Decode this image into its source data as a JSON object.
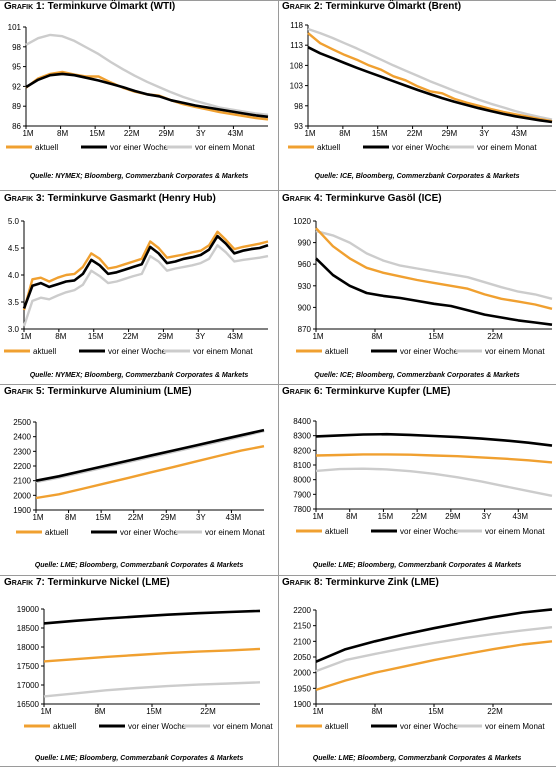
{
  "panels": [
    {
      "grafik": "Grafik 1:",
      "name": "Terminkurve Ölmarkt (WTI)",
      "source": "Quelle: NYMEX; Bloomberg, Commerzbank Corporates & Markets",
      "chart_data": {
        "type": "line",
        "xlabel": "",
        "ylabel": "",
        "x_ticks": [
          "1M",
          "8M",
          "15M",
          "22M",
          "29M",
          "3Y",
          "43M"
        ],
        "ylim": [
          86,
          101
        ],
        "y_ticks": [
          "86",
          "89",
          "92",
          "95",
          "98",
          "101"
        ],
        "series": [
          {
            "name": "aktuell",
            "color": "#f0a030",
            "values": [
              91.8,
              93.2,
              93.9,
              94.2,
              93.8,
              93.5,
              93.5,
              92.6,
              91.8,
              91.2,
              90.8,
              90.6,
              89.9,
              89.3,
              88.9,
              88.5,
              88.1,
              87.8,
              87.5,
              87.2,
              87.0
            ]
          },
          {
            "name": "vor einer Woche",
            "color": "#000000",
            "values": [
              91.9,
              93.0,
              93.7,
              93.9,
              93.7,
              93.3,
              92.9,
              92.4,
              91.9,
              91.3,
              90.8,
              90.5,
              89.9,
              89.5,
              89.1,
              88.8,
              88.5,
              88.2,
              87.9,
              87.6,
              87.4
            ]
          },
          {
            "name": "vor einem Monat",
            "color": "#cccccc",
            "values": [
              98.3,
              99.3,
              99.8,
              99.6,
              98.9,
              97.9,
              96.9,
              95.7,
              94.6,
              93.6,
              92.7,
              91.9,
              91.1,
              90.4,
              89.8,
              89.3,
              88.8,
              88.5,
              88.2,
              87.9,
              87.7
            ]
          }
        ]
      }
    },
    {
      "grafik": "Grafik 2:",
      "name": "Terminkurve Ölmarkt (Brent)",
      "source": "Quelle: ICE, Bloomberg, Commerzbank Corporates & Markets",
      "chart_data": {
        "type": "line",
        "xlabel": "",
        "ylabel": "",
        "x_ticks": [
          "1M",
          "8M",
          "15M",
          "22M",
          "29M",
          "3Y",
          "43M"
        ],
        "ylim": [
          93,
          118
        ],
        "y_ticks": [
          "93",
          "98",
          "103",
          "108",
          "113",
          "118"
        ],
        "series": [
          {
            "name": "aktuell",
            "color": "#f0a030",
            "values": [
              116.0,
              113.5,
              112.0,
              110.6,
              109.4,
              108.0,
              106.9,
              105.3,
              104.3,
              102.8,
              101.6,
              101.1,
              99.7,
              98.8,
              98.0,
              97.2,
              96.5,
              95.9,
              95.3,
              94.7,
              94.2
            ]
          },
          {
            "name": "vor einer Woche",
            "color": "#000000",
            "values": [
              112.5,
              111.0,
              109.8,
              108.6,
              107.4,
              106.3,
              105.2,
              104.1,
              103.0,
              101.9,
              100.9,
              99.9,
              99.0,
              98.2,
              97.4,
              96.7,
              96.0,
              95.4,
              94.9,
              94.4,
              94.0
            ]
          },
          {
            "name": "vor einem Monat",
            "color": "#cccccc",
            "values": [
              117.0,
              116.0,
              114.8,
              113.5,
              112.2,
              110.8,
              109.4,
              108.0,
              106.7,
              105.4,
              104.1,
              102.9,
              101.7,
              100.6,
              99.5,
              98.5,
              97.6,
              96.7,
              95.9,
              95.2,
              94.6
            ]
          }
        ]
      }
    },
    {
      "grafik": "Grafik 3:",
      "name": "Terminkurve Gasmarkt (Henry Hub)",
      "source": "Quelle: NYMEX; Bloomberg, Commerzbank Corporates & Markets",
      "chart_data": {
        "type": "line",
        "xlabel": "",
        "ylabel": "",
        "x_ticks": [
          "1M",
          "8M",
          "15M",
          "22M",
          "29M",
          "3Y",
          "43M"
        ],
        "ylim": [
          3.0,
          5.0
        ],
        "y_ticks": [
          "3.0",
          "3.5",
          "4.0",
          "4.5",
          "5.0"
        ],
        "series": [
          {
            "name": "aktuell",
            "color": "#f0a030",
            "values": [
              3.35,
              3.92,
              3.95,
              3.88,
              3.95,
              4.0,
              4.02,
              4.15,
              4.4,
              4.3,
              4.12,
              4.15,
              4.2,
              4.25,
              4.3,
              4.62,
              4.5,
              4.32,
              4.35,
              4.38,
              4.42,
              4.45,
              4.55,
              4.8,
              4.65,
              4.48,
              4.52,
              4.55,
              4.58,
              4.62
            ]
          },
          {
            "name": "vor einer Woche",
            "color": "#000000",
            "values": [
              3.38,
              3.8,
              3.85,
              3.78,
              3.83,
              3.88,
              3.9,
              4.02,
              4.28,
              4.18,
              4.02,
              4.05,
              4.1,
              4.15,
              4.2,
              4.52,
              4.4,
              4.22,
              4.25,
              4.3,
              4.33,
              4.37,
              4.47,
              4.72,
              4.58,
              4.4,
              4.45,
              4.48,
              4.5,
              4.55
            ]
          },
          {
            "name": "vor einem Monat",
            "color": "#cccccc",
            "values": [
              3.05,
              3.52,
              3.58,
              3.55,
              3.62,
              3.68,
              3.72,
              3.82,
              4.08,
              3.98,
              3.85,
              3.88,
              3.93,
              3.98,
              4.02,
              4.35,
              4.25,
              4.08,
              4.12,
              4.15,
              4.18,
              4.22,
              4.3,
              4.55,
              4.42,
              4.25,
              4.28,
              4.3,
              4.32,
              4.35
            ]
          }
        ]
      }
    },
    {
      "grafik": "Grafik 4:",
      "name": "Terminkurve Gasöl (ICE)",
      "source": "Quelle: ICE; Bloomberg, Commerzbank Corporates & Markets",
      "chart_data": {
        "type": "line",
        "xlabel": "",
        "ylabel": "",
        "x_ticks": [
          "1M",
          "8M",
          "15M",
          "22M"
        ],
        "ylim": [
          870,
          1020
        ],
        "y_ticks": [
          "870",
          "900",
          "930",
          "960",
          "990",
          "1020"
        ],
        "series": [
          {
            "name": "aktuell",
            "color": "#f0a030",
            "values": [
              1010,
              985,
              968,
              955,
              948,
              943,
              938,
              934,
              930,
              926,
              918,
              912,
              908,
              904,
              898
            ]
          },
          {
            "name": "vor einer Woche",
            "color": "#000000",
            "values": [
              968,
              945,
              930,
              920,
              916,
              913,
              909,
              905,
              902,
              896,
              890,
              886,
              882,
              879,
              876
            ]
          },
          {
            "name": "vor einem Monat",
            "color": "#cccccc",
            "values": [
              1006,
              1000,
              990,
              975,
              965,
              958,
              954,
              950,
              946,
              942,
              935,
              928,
              922,
              918,
              912
            ]
          }
        ]
      }
    },
    {
      "grafik": "Grafik 5:",
      "name": "Terminkurve Aluminium (LME)",
      "source": "Quelle: LME; Bloomberg, Commerzbank Corporates & Markets",
      "chart_data": {
        "type": "line",
        "xlabel": "",
        "ylabel": "",
        "x_ticks": [
          "1M",
          "8M",
          "15M",
          "22M",
          "29M",
          "3Y",
          "43M"
        ],
        "ylim": [
          1900,
          2500
        ],
        "y_ticks": [
          "1900",
          "2000",
          "2100",
          "2200",
          "2300",
          "2400",
          "2500"
        ],
        "series": [
          {
            "name": "aktuell",
            "color": "#f0a030",
            "values": [
              1982,
              2007,
              2043,
              2080,
              2117,
              2155,
              2192,
              2230,
              2268,
              2305,
              2335
            ]
          },
          {
            "name": "vor einer Woche",
            "color": "#000000",
            "values": [
              2100,
              2130,
              2165,
              2200,
              2235,
              2270,
              2305,
              2340,
              2375,
              2410,
              2445
            ]
          },
          {
            "name": "vor einem Monat",
            "color": "#cccccc",
            "values": [
              2090,
              2120,
              2155,
              2190,
              2225,
              2260,
              2295,
              2330,
              2365,
              2400,
              2438
            ]
          }
        ]
      }
    },
    {
      "grafik": "Grafik 6:",
      "name": "Terminkurve Kupfer (LME)",
      "source": "Quelle: LME; Bloomberg, Commerzbank Corporates & Markets",
      "chart_data": {
        "type": "line",
        "xlabel": "",
        "ylabel": "",
        "x_ticks": [
          "1M",
          "8M",
          "15M",
          "22M",
          "29M",
          "3Y",
          "43M"
        ],
        "ylim": [
          7800,
          8400
        ],
        "y_ticks": [
          "7800",
          "7900",
          "8000",
          "8100",
          "8200",
          "8300",
          "8400"
        ],
        "series": [
          {
            "name": "aktuell",
            "color": "#f0a030",
            "values": [
              8165,
              8168,
              8172,
              8172,
              8170,
              8165,
              8160,
              8152,
              8143,
              8132,
              8118
            ]
          },
          {
            "name": "vor einer Woche",
            "color": "#000000",
            "values": [
              8295,
              8302,
              8308,
              8310,
              8305,
              8298,
              8290,
              8280,
              8268,
              8252,
              8232
            ]
          },
          {
            "name": "vor einem Monat",
            "color": "#cccccc",
            "values": [
              8060,
              8072,
              8075,
              8070,
              8058,
              8040,
              8016,
              7988,
              7955,
              7922,
              7890
            ]
          }
        ]
      }
    },
    {
      "grafik": "Grafik 7:",
      "name": "Terminkurve Nickel (LME)",
      "source": "Quelle: LME; Bloomberg, Commerzbank Corporates & Markets",
      "chart_data": {
        "type": "line",
        "xlabel": "",
        "ylabel": "",
        "x_ticks": [
          "1M",
          "8M",
          "15M",
          "22M"
        ],
        "ylim": [
          16500,
          19000
        ],
        "y_ticks": [
          "16500",
          "17000",
          "17500",
          "18000",
          "18500",
          "19000"
        ],
        "series": [
          {
            "name": "aktuell",
            "color": "#f0a030",
            "values": [
              17620,
              17680,
              17740,
              17790,
              17840,
              17880,
              17910,
              17950
            ]
          },
          {
            "name": "vor einer Woche",
            "color": "#000000",
            "values": [
              18620,
              18690,
              18750,
              18800,
              18850,
              18890,
              18920,
              18950
            ]
          },
          {
            "name": "vor einem Monat",
            "color": "#cccccc",
            "values": [
              16700,
              16780,
              16860,
              16920,
              16970,
              17010,
              17040,
              17070
            ]
          }
        ]
      }
    },
    {
      "grafik": "Grafik 8:",
      "name": "Terminkurve Zink (LME)",
      "source": "Quelle: LME; Bloomberg, Commerzbank Corporates & Markets",
      "chart_data": {
        "type": "line",
        "xlabel": "",
        "ylabel": "",
        "x_ticks": [
          "1M",
          "8M",
          "15M",
          "22M"
        ],
        "ylim": [
          1900,
          2200
        ],
        "y_ticks": [
          "1900",
          "1950",
          "2000",
          "2050",
          "2100",
          "2150",
          "2200"
        ],
        "series": [
          {
            "name": "aktuell",
            "color": "#f0a030",
            "values": [
              1945,
              1975,
              2000,
              2020,
              2040,
              2058,
              2075,
              2090,
              2100
            ]
          },
          {
            "name": "vor einer Woche",
            "color": "#000000",
            "values": [
              2035,
              2075,
              2100,
              2122,
              2142,
              2160,
              2177,
              2192,
              2202
            ]
          },
          {
            "name": "vor einem Monat",
            "color": "#cccccc",
            "values": [
              2005,
              2040,
              2060,
              2078,
              2095,
              2110,
              2123,
              2135,
              2145
            ]
          }
        ]
      }
    }
  ]
}
